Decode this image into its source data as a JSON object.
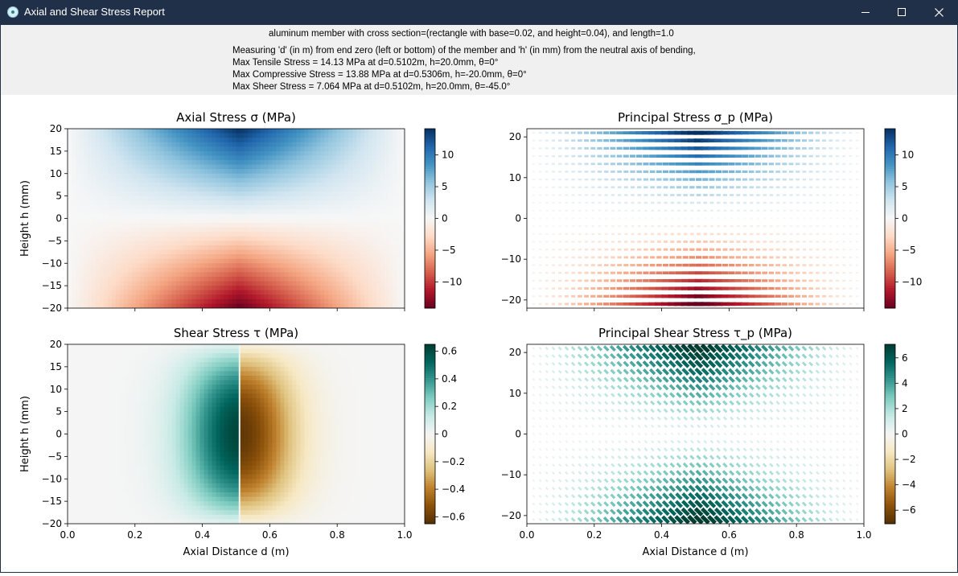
{
  "window": {
    "title": "Axial and Shear Stress Report",
    "icon": "gear-icon",
    "controls": [
      "minimize-icon",
      "maximize-icon",
      "close-icon"
    ]
  },
  "report": {
    "header": "aluminum member with cross section=(rectangle with base=0.02, and height=0.04), and length=1.0",
    "lines": [
      "Measuring 'd' (in m) from end zero (left or bottom) of the member and 'h' (in mm) from the neutral axis of bending,",
      "Max Tensile Stress = 14.13 MPa at d=0.5102m, h=20.0mm, θ=0°",
      "Max Compressive Stress = 13.88 MPa at d=0.5306m, h=-20.0mm, θ=0°",
      "Max Sheer Stress = 7.064 MPa at d=0.5102m, h=20.0mm, θ=-45.0°"
    ]
  },
  "chart_data": [
    {
      "id": "axial",
      "type": "heatmap",
      "title": "Axial Stress σ (MPa)",
      "xlabel": "",
      "ylabel": "Height h (mm)",
      "xlim": [
        0,
        1.0
      ],
      "ylim": [
        -20,
        20
      ],
      "xticks": [
        0.0,
        0.2,
        0.4,
        0.6,
        0.8,
        1.0
      ],
      "xtick_labels_shown": false,
      "yticks": [
        -20,
        -15,
        -10,
        -5,
        0,
        5,
        10,
        15,
        20
      ],
      "colormap": "RdBu",
      "colorbar": {
        "min": -14.13,
        "max": 14.13,
        "ticks": [
          -10,
          -5,
          0,
          5,
          10
        ]
      },
      "peak_d": 0.5102,
      "max_value": 14.13
    },
    {
      "id": "principal",
      "type": "scatter",
      "title": "Principal Stress σ_p (MPa)",
      "xlabel": "",
      "ylabel": "",
      "xlim": [
        0,
        1.0
      ],
      "ylim": [
        -22,
        22
      ],
      "xticks": [
        0.0,
        0.2,
        0.4,
        0.6,
        0.8,
        1.0
      ],
      "xtick_labels_shown": false,
      "yticks": [
        -20,
        -10,
        0,
        10,
        20
      ],
      "colormap": "RdBu",
      "colorbar": {
        "min": -14.13,
        "max": 14.13,
        "ticks": [
          -10,
          -5,
          0,
          5,
          10
        ]
      },
      "glyph": "oriented line segments (stress direction)",
      "angle_deg": 0
    },
    {
      "id": "shear",
      "type": "heatmap",
      "title": "Shear Stress τ (MPa)",
      "xlabel": "Axial Distance d (m)",
      "ylabel": "Height h (mm)",
      "xlim": [
        0,
        1.0
      ],
      "ylim": [
        -20,
        20
      ],
      "xticks": [
        0.0,
        0.2,
        0.4,
        0.6,
        0.8,
        1.0
      ],
      "yticks": [
        -20,
        -15,
        -10,
        -5,
        0,
        5,
        10,
        15,
        20
      ],
      "colormap": "BrBG",
      "colorbar": {
        "min": -0.65,
        "max": 0.65,
        "ticks": [
          -0.6,
          -0.4,
          -0.2,
          0.0,
          0.2,
          0.4,
          0.6
        ]
      },
      "discontinuity_d": 0.5102
    },
    {
      "id": "principal_shear",
      "type": "scatter",
      "title": "Principal Shear Stress τ_p (MPa)",
      "xlabel": "Axial Distance d (m)",
      "ylabel": "",
      "xlim": [
        0,
        1.0
      ],
      "ylim": [
        -22,
        22
      ],
      "xticks": [
        0.0,
        0.2,
        0.4,
        0.6,
        0.8,
        1.0
      ],
      "yticks": [
        -20,
        -10,
        0,
        10,
        20
      ],
      "colormap": "BrBG",
      "colorbar": {
        "min": -7.064,
        "max": 7.064,
        "ticks": [
          -6,
          -4,
          -2,
          0,
          2,
          4,
          6
        ]
      },
      "glyph": "oriented line segments (stress direction)",
      "angle_deg": -45,
      "max_value": 7.064
    }
  ]
}
